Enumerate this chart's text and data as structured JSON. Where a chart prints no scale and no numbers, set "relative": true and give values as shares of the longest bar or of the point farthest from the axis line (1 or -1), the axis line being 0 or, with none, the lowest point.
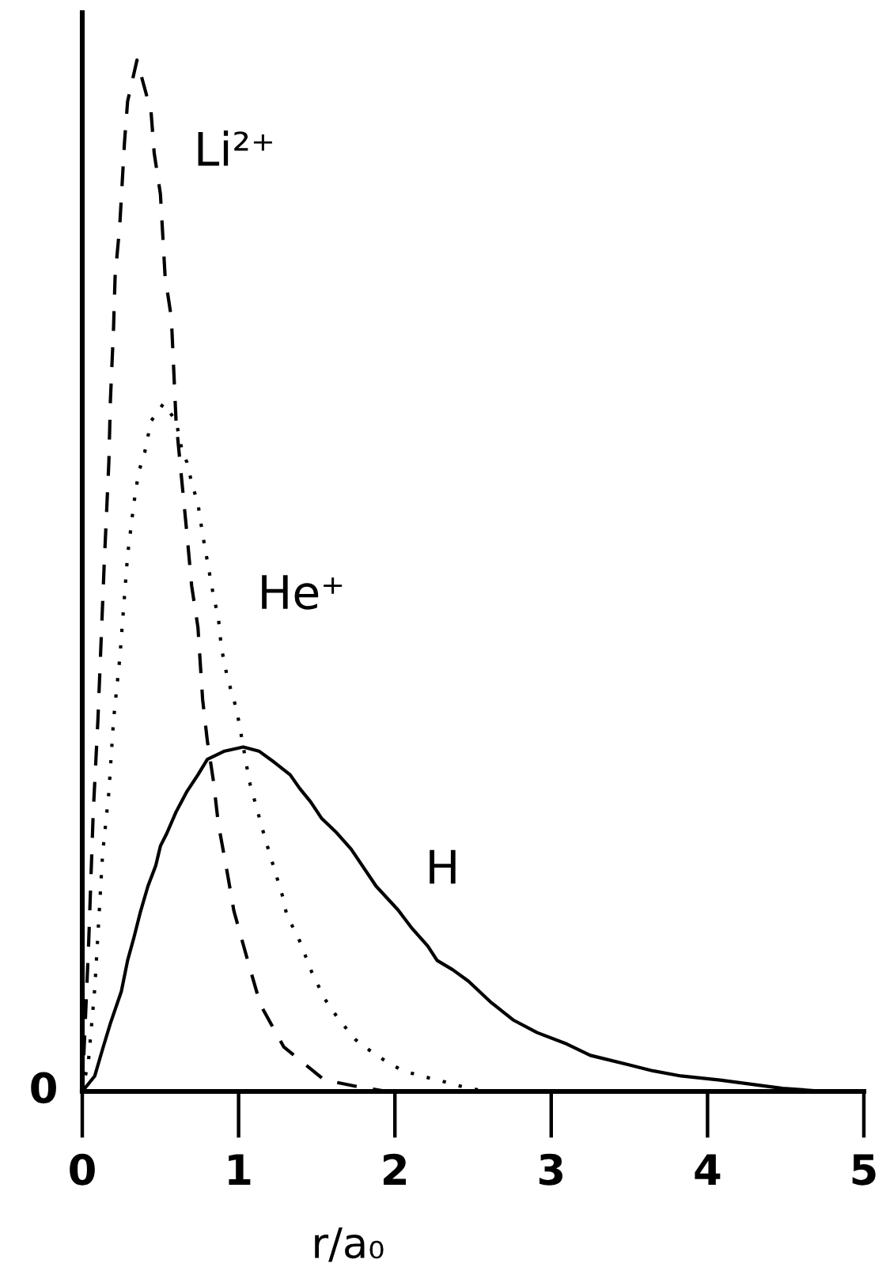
{
  "chart_data": {
    "type": "line",
    "relative": true,
    "xlabel": "r/a₀",
    "xlim": [
      0,
      5
    ],
    "xticks": [
      0,
      1,
      2,
      3,
      4,
      5
    ],
    "annotations": [
      "0"
    ],
    "series": [
      {
        "name": "Li²⁺",
        "color": "#000000",
        "line_style": "dashed",
        "x": [
          0,
          0.04,
          0.07,
          0.1,
          0.14,
          0.17,
          0.18,
          0.2,
          0.21,
          0.24,
          0.27,
          0.29,
          0.35,
          0.44,
          0.46,
          0.5,
          0.53,
          0.57,
          0.6,
          0.67,
          0.7,
          0.74,
          0.77,
          0.8,
          0.84,
          0.87,
          0.93,
          0.97,
          1.06,
          1.14,
          1.29,
          1.55,
          1.75,
          1.95
        ],
        "values": [
          0,
          0.14,
          0.27,
          0.36,
          0.51,
          0.61,
          0.67,
          0.74,
          0.79,
          0.84,
          0.92,
          0.96,
          1.0,
          0.95,
          0.91,
          0.87,
          0.79,
          0.75,
          0.65,
          0.54,
          0.49,
          0.45,
          0.38,
          0.34,
          0.3,
          0.26,
          0.21,
          0.175,
          0.126,
          0.084,
          0.043,
          0.011,
          0.005,
          0
        ]
      },
      {
        "name": "He⁺",
        "color": "#000000",
        "line_style": "dotted",
        "x": [
          0,
          0.04,
          0.08,
          0.13,
          0.17,
          0.2,
          0.24,
          0.27,
          0.29,
          0.33,
          0.36,
          0.4,
          0.44,
          0.52,
          0.6,
          0.64,
          0.67,
          0.7,
          0.74,
          0.77,
          0.84,
          0.87,
          0.89,
          0.93,
          0.97,
          1.0,
          1.07,
          1.17,
          1.28,
          1.31,
          1.38,
          1.47,
          1.55,
          1.64,
          1.75,
          1.88,
          2.05,
          2.17,
          2.3,
          2.47,
          2.6
        ],
        "values": [
          0,
          0.03,
          0.1,
          0.23,
          0.29,
          0.36,
          0.42,
          0.48,
          0.52,
          0.57,
          0.6,
          0.62,
          0.65,
          0.667,
          0.65,
          0.62,
          0.61,
          0.59,
          0.57,
          0.54,
          0.48,
          0.46,
          0.43,
          0.4,
          0.38,
          0.36,
          0.3,
          0.245,
          0.19,
          0.17,
          0.15,
          0.115,
          0.09,
          0.07,
          0.05,
          0.035,
          0.02,
          0.015,
          0.01,
          0.003,
          0
        ]
      },
      {
        "name": "H",
        "color": "#000000",
        "line_style": "solid",
        "x": [
          0,
          0.08,
          0.13,
          0.18,
          0.25,
          0.29,
          0.33,
          0.37,
          0.42,
          0.47,
          0.5,
          0.54,
          0.6,
          0.67,
          0.74,
          0.8,
          0.91,
          1.03,
          1.13,
          1.23,
          1.33,
          1.39,
          1.46,
          1.53,
          1.62,
          1.72,
          1.88,
          2.02,
          2.11,
          2.21,
          2.27,
          2.37,
          2.47,
          2.61,
          2.76,
          2.91,
          3.1,
          3.25,
          3.49,
          3.65,
          3.83,
          4.08,
          4.48,
          4.75
        ],
        "values": [
          0,
          0.015,
          0.041,
          0.066,
          0.097,
          0.127,
          0.149,
          0.173,
          0.199,
          0.219,
          0.238,
          0.25,
          0.271,
          0.291,
          0.307,
          0.322,
          0.33,
          0.334,
          0.33,
          0.319,
          0.307,
          0.294,
          0.281,
          0.265,
          0.252,
          0.235,
          0.199,
          0.176,
          0.158,
          0.141,
          0.127,
          0.118,
          0.107,
          0.087,
          0.069,
          0.057,
          0.046,
          0.035,
          0.026,
          0.02,
          0.015,
          0.011,
          0.003,
          0
        ]
      }
    ]
  }
}
